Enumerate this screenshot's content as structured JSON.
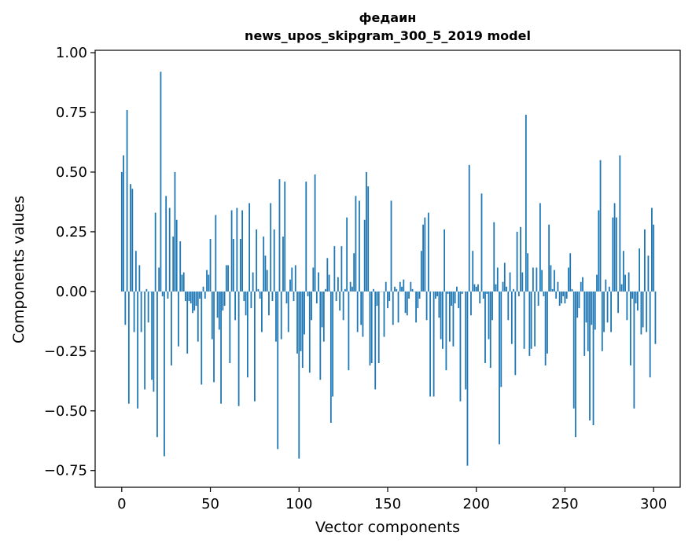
{
  "chart_data": {
    "type": "bar",
    "title": "федаин",
    "subtitle": "news_upos_skipgram_300_5_2019 model",
    "xlabel": "Vector components",
    "ylabel": "Components values",
    "xlim": [
      -15,
      315
    ],
    "ylim": [
      -0.82,
      1.01
    ],
    "xticks": [
      0,
      50,
      100,
      150,
      200,
      250,
      300
    ],
    "yticks": [
      -0.75,
      -0.5,
      -0.25,
      0.0,
      0.25,
      0.5,
      0.75,
      1.0
    ],
    "ytick_labels": [
      "−0.75",
      "−0.50",
      "−0.25",
      "0.00",
      "0.25",
      "0.50",
      "0.75",
      "1.00"
    ],
    "grid": false,
    "legend": "none",
    "bar_color": "#1f77b4",
    "values": [
      0.5,
      0.57,
      -0.14,
      0.76,
      -0.47,
      0.45,
      0.43,
      -0.17,
      0.17,
      -0.49,
      0.11,
      -0.17,
      0.0,
      -0.41,
      0.01,
      -0.13,
      0.0,
      -0.37,
      -0.42,
      0.33,
      -0.61,
      0.1,
      0.92,
      -0.02,
      -0.69,
      0.4,
      -0.03,
      0.35,
      -0.31,
      0.23,
      0.5,
      0.3,
      -0.23,
      0.21,
      0.07,
      0.08,
      -0.04,
      -0.26,
      -0.04,
      -0.05,
      -0.09,
      -0.08,
      -0.06,
      -0.21,
      -0.03,
      -0.39,
      0.02,
      -0.03,
      0.09,
      0.07,
      0.22,
      -0.2,
      -0.38,
      0.32,
      -0.11,
      -0.16,
      -0.47,
      -0.08,
      -0.06,
      0.11,
      0.11,
      -0.3,
      0.34,
      0.22,
      -0.12,
      0.35,
      -0.48,
      0.22,
      0.34,
      -0.04,
      -0.1,
      -0.36,
      0.37,
      -0.07,
      0.08,
      -0.46,
      0.26,
      0.01,
      -0.03,
      -0.17,
      0.23,
      0.15,
      0.09,
      -0.1,
      0.37,
      -0.04,
      0.26,
      -0.21,
      -0.66,
      0.47,
      -0.2,
      0.23,
      0.46,
      -0.05,
      -0.17,
      0.05,
      0.1,
      -0.04,
      0.11,
      -0.26,
      -0.7,
      -0.25,
      -0.32,
      -0.18,
      0.46,
      -0.02,
      -0.34,
      -0.12,
      0.1,
      0.49,
      -0.05,
      0.08,
      -0.37,
      -0.15,
      -0.21,
      0.01,
      0.14,
      0.07,
      -0.55,
      -0.44,
      0.19,
      -0.04,
      0.06,
      -0.08,
      0.19,
      -0.12,
      0.01,
      0.31,
      -0.33,
      0.04,
      0.02,
      0.16,
      0.4,
      -0.17,
      0.38,
      -0.14,
      -0.19,
      0.3,
      0.5,
      0.44,
      -0.31,
      -0.3,
      0.01,
      -0.41,
      -0.06,
      -0.3,
      0.0,
      0.0,
      -0.19,
      0.04,
      -0.07,
      -0.04,
      0.38,
      -0.14,
      0.02,
      0.01,
      -0.13,
      0.04,
      0.02,
      0.05,
      -0.09,
      -0.1,
      -0.03,
      0.04,
      0.01,
      0.0,
      -0.13,
      -0.07,
      -0.03,
      0.17,
      0.28,
      0.31,
      -0.12,
      0.33,
      -0.44,
      0.0,
      -0.44,
      -0.03,
      -0.02,
      -0.11,
      -0.2,
      -0.24,
      0.26,
      -0.33,
      -0.01,
      -0.21,
      -0.06,
      -0.23,
      -0.05,
      0.02,
      -0.07,
      -0.46,
      -0.01,
      0.0,
      -0.41,
      -0.73,
      0.53,
      -0.1,
      0.17,
      0.03,
      0.02,
      0.03,
      -0.05,
      0.41,
      -0.03,
      -0.3,
      -0.01,
      -0.2,
      -0.32,
      -0.12,
      0.29,
      0.03,
      0.1,
      -0.64,
      -0.4,
      0.04,
      0.12,
      0.02,
      -0.12,
      0.08,
      -0.22,
      0.01,
      -0.35,
      0.25,
      -0.02,
      0.27,
      0.08,
      -0.24,
      0.74,
      0.16,
      -0.27,
      -0.24,
      0.1,
      -0.23,
      0.1,
      -0.06,
      0.37,
      0.09,
      -0.02,
      -0.31,
      -0.26,
      0.28,
      0.11,
      0.01,
      0.09,
      -0.03,
      0.04,
      -0.06,
      -0.05,
      -0.02,
      -0.05,
      -0.03,
      0.1,
      0.16,
      0.01,
      -0.49,
      -0.61,
      -0.11,
      -0.07,
      0.04,
      0.06,
      -0.27,
      -0.13,
      -0.25,
      -0.54,
      -0.14,
      -0.56,
      -0.16,
      0.07,
      0.34,
      0.55,
      -0.25,
      -0.17,
      0.05,
      -0.13,
      0.02,
      -0.17,
      0.31,
      0.37,
      0.31,
      -0.09,
      0.57,
      0.03,
      0.17,
      0.07,
      -0.12,
      0.08,
      -0.31,
      -0.03,
      -0.49,
      -0.05,
      -0.08,
      0.18,
      -0.18,
      -0.15,
      0.26,
      -0.17,
      0.15,
      -0.36,
      0.35,
      0.28,
      -0.22
    ]
  }
}
